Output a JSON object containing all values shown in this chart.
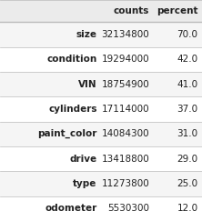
{
  "columns": [
    "counts",
    "percent"
  ],
  "rows": [
    [
      "size",
      "32134800",
      "70.0"
    ],
    [
      "condition",
      "19294000",
      "42.0"
    ],
    [
      "VIN",
      "18754900",
      "41.0"
    ],
    [
      "cylinders",
      "17114000",
      "37.0"
    ],
    [
      "paint_color",
      "14084300",
      "31.0"
    ],
    [
      "drive",
      "13418800",
      "29.0"
    ],
    [
      "type",
      "11273800",
      "25.0"
    ],
    [
      "odometer",
      "5530300",
      "12.0"
    ]
  ],
  "header_bg": "#ebebeb",
  "row_bg_odd": "#f5f5f5",
  "row_bg_even": "#ffffff",
  "border_color": "#bbbbbb",
  "header_fontsize": 7.5,
  "row_fontsize": 7.5,
  "fig_width": 2.22,
  "fig_height": 2.43,
  "dpi": 100
}
